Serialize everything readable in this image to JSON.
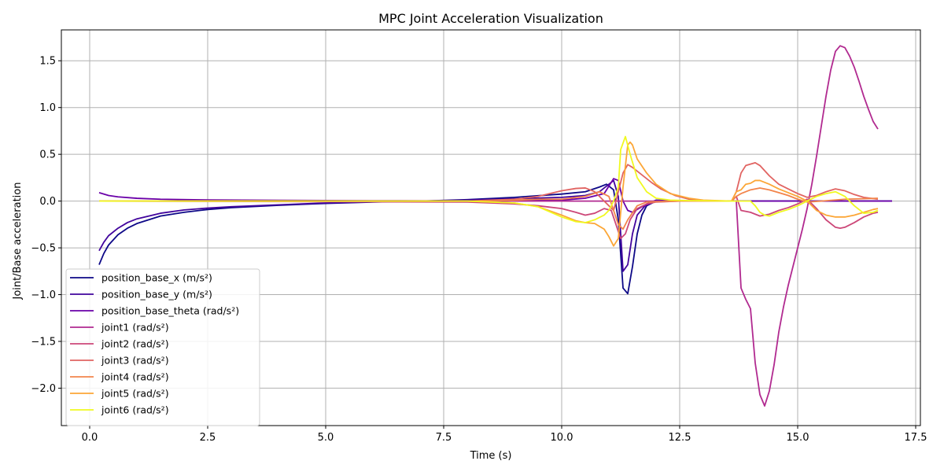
{
  "chart_data": {
    "type": "line",
    "title": "MPC Joint Acceleration Visualization",
    "xlabel": "Time (s)",
    "ylabel": "Joint/Base acceleration",
    "xlim": [
      -0.6,
      17.6
    ],
    "ylim": [
      -2.4,
      1.83
    ],
    "xticks": [
      0.0,
      2.5,
      5.0,
      7.5,
      10.0,
      12.5,
      15.0,
      17.5
    ],
    "xtick_labels": [
      "0.0",
      "2.5",
      "5.0",
      "7.5",
      "10.0",
      "12.5",
      "15.0",
      "17.5"
    ],
    "yticks": [
      1.5,
      1.0,
      0.5,
      0.0,
      -0.5,
      -1.0,
      -1.5,
      -2.0
    ],
    "ytick_labels": [
      "1.5",
      "1.0",
      "0.5",
      "0.0",
      "−0.5",
      "−1.0",
      "−1.5",
      "−2.0"
    ],
    "grid": true,
    "legend_position": "bottom-left",
    "series": [
      {
        "name": "position_base_x (m/s²)",
        "color": "#0d0887",
        "points": [
          [
            0.2,
            -0.68
          ],
          [
            0.3,
            -0.56
          ],
          [
            0.4,
            -0.47
          ],
          [
            0.6,
            -0.36
          ],
          [
            0.8,
            -0.29
          ],
          [
            1.0,
            -0.24
          ],
          [
            1.5,
            -0.16
          ],
          [
            2.0,
            -0.12
          ],
          [
            2.5,
            -0.09
          ],
          [
            3.0,
            -0.07
          ],
          [
            4.0,
            -0.045
          ],
          [
            5.0,
            -0.025
          ],
          [
            6.0,
            -0.01
          ],
          [
            7.0,
            0.0
          ],
          [
            8.0,
            0.015
          ],
          [
            9.0,
            0.04
          ],
          [
            10.0,
            0.075
          ],
          [
            10.5,
            0.1
          ],
          [
            10.8,
            0.15
          ],
          [
            10.95,
            0.18
          ],
          [
            11.1,
            0.12
          ],
          [
            11.2,
            -0.2
          ],
          [
            11.3,
            -0.93
          ],
          [
            11.4,
            -0.99
          ],
          [
            11.5,
            -0.7
          ],
          [
            11.6,
            -0.35
          ],
          [
            11.7,
            -0.15
          ],
          [
            11.8,
            -0.05
          ],
          [
            12.0,
            0.0
          ],
          [
            12.5,
            0.0
          ],
          [
            17.0,
            0.0
          ]
        ]
      },
      {
        "name": "position_base_y (m/s²)",
        "color": "#41049d",
        "points": [
          [
            0.2,
            -0.53
          ],
          [
            0.3,
            -0.44
          ],
          [
            0.4,
            -0.37
          ],
          [
            0.6,
            -0.29
          ],
          [
            0.8,
            -0.23
          ],
          [
            1.0,
            -0.19
          ],
          [
            1.5,
            -0.13
          ],
          [
            2.0,
            -0.095
          ],
          [
            2.5,
            -0.075
          ],
          [
            3.0,
            -0.06
          ],
          [
            4.0,
            -0.04
          ],
          [
            5.0,
            -0.02
          ],
          [
            6.0,
            -0.008
          ],
          [
            7.0,
            0.0
          ],
          [
            8.0,
            0.01
          ],
          [
            9.0,
            0.025
          ],
          [
            10.0,
            0.04
          ],
          [
            10.5,
            0.06
          ],
          [
            10.8,
            0.1
          ],
          [
            11.0,
            0.18
          ],
          [
            11.1,
            0.22
          ],
          [
            11.2,
            0.05
          ],
          [
            11.3,
            -0.75
          ],
          [
            11.4,
            -0.68
          ],
          [
            11.5,
            -0.35
          ],
          [
            11.6,
            -0.15
          ],
          [
            11.8,
            -0.03
          ],
          [
            12.0,
            0.01
          ],
          [
            12.5,
            0.0
          ],
          [
            17.0,
            0.0
          ]
        ]
      },
      {
        "name": "position_base_theta (rad/s²)",
        "color": "#6a00a8",
        "points": [
          [
            0.2,
            0.09
          ],
          [
            0.4,
            0.06
          ],
          [
            0.6,
            0.045
          ],
          [
            1.0,
            0.03
          ],
          [
            1.5,
            0.02
          ],
          [
            2.5,
            0.012
          ],
          [
            4.0,
            0.008
          ],
          [
            6.0,
            0.004
          ],
          [
            8.0,
            0.002
          ],
          [
            10.0,
            0.01
          ],
          [
            10.5,
            0.03
          ],
          [
            10.9,
            0.08
          ],
          [
            11.1,
            0.24
          ],
          [
            11.2,
            0.22
          ],
          [
            11.3,
            0.0
          ],
          [
            11.4,
            -0.1
          ],
          [
            11.5,
            -0.12
          ],
          [
            11.7,
            -0.06
          ],
          [
            12.0,
            0.0
          ],
          [
            12.5,
            0.0
          ],
          [
            17.0,
            0.0
          ]
        ]
      },
      {
        "name": "joint1 (rad/s²)",
        "color": "#b12a90",
        "points": [
          [
            0.2,
            0.0
          ],
          [
            13.7,
            0.0
          ],
          [
            13.8,
            -0.93
          ],
          [
            13.9,
            -1.05
          ],
          [
            14.0,
            -1.15
          ],
          [
            14.1,
            -1.73
          ],
          [
            14.2,
            -2.07
          ],
          [
            14.3,
            -2.19
          ],
          [
            14.4,
            -2.03
          ],
          [
            14.5,
            -1.75
          ],
          [
            14.6,
            -1.4
          ],
          [
            14.7,
            -1.13
          ],
          [
            14.8,
            -0.9
          ],
          [
            14.9,
            -0.7
          ],
          [
            15.0,
            -0.5
          ],
          [
            15.1,
            -0.3
          ],
          [
            15.2,
            -0.08
          ],
          [
            15.3,
            0.18
          ],
          [
            15.4,
            0.48
          ],
          [
            15.5,
            0.8
          ],
          [
            15.6,
            1.12
          ],
          [
            15.7,
            1.4
          ],
          [
            15.8,
            1.6
          ],
          [
            15.9,
            1.66
          ],
          [
            16.0,
            1.64
          ],
          [
            16.1,
            1.55
          ],
          [
            16.2,
            1.43
          ],
          [
            16.3,
            1.28
          ],
          [
            16.4,
            1.12
          ],
          [
            16.5,
            0.98
          ],
          [
            16.6,
            0.85
          ],
          [
            16.7,
            0.77
          ]
        ]
      },
      {
        "name": "joint2 (rad/s²)",
        "color": "#cc4778",
        "points": [
          [
            0.2,
            0.0
          ],
          [
            8.0,
            -0.01
          ],
          [
            9.0,
            -0.03
          ],
          [
            9.5,
            -0.05
          ],
          [
            10.0,
            -0.08
          ],
          [
            10.3,
            -0.12
          ],
          [
            10.5,
            -0.15
          ],
          [
            10.7,
            -0.13
          ],
          [
            10.9,
            -0.08
          ],
          [
            11.05,
            -0.1
          ],
          [
            11.15,
            -0.25
          ],
          [
            11.25,
            -0.4
          ],
          [
            11.35,
            -0.35
          ],
          [
            11.45,
            -0.2
          ],
          [
            11.6,
            -0.08
          ],
          [
            11.8,
            -0.03
          ],
          [
            12.0,
            -0.01
          ],
          [
            12.5,
            0.0
          ],
          [
            13.6,
            0.0
          ],
          [
            13.7,
            0.05
          ],
          [
            13.8,
            -0.1
          ],
          [
            14.0,
            -0.12
          ],
          [
            14.2,
            -0.16
          ],
          [
            14.4,
            -0.14
          ],
          [
            14.6,
            -0.1
          ],
          [
            14.8,
            -0.07
          ],
          [
            15.0,
            -0.03
          ],
          [
            15.2,
            0.02
          ],
          [
            15.4,
            -0.08
          ],
          [
            15.6,
            -0.2
          ],
          [
            15.8,
            -0.28
          ],
          [
            15.9,
            -0.29
          ],
          [
            16.0,
            -0.28
          ],
          [
            16.2,
            -0.23
          ],
          [
            16.4,
            -0.17
          ],
          [
            16.6,
            -0.13
          ],
          [
            16.7,
            -0.12
          ]
        ]
      },
      {
        "name": "joint3 (rad/s²)",
        "color": "#e16462",
        "points": [
          [
            0.2,
            0.0
          ],
          [
            8.0,
            0.0
          ],
          [
            9.0,
            0.02
          ],
          [
            9.5,
            0.05
          ],
          [
            10.0,
            0.11
          ],
          [
            10.3,
            0.135
          ],
          [
            10.5,
            0.14
          ],
          [
            10.7,
            0.1
          ],
          [
            10.9,
            0.0
          ],
          [
            11.0,
            -0.05
          ],
          [
            11.1,
            -0.1
          ],
          [
            11.2,
            0.1
          ],
          [
            11.3,
            0.3
          ],
          [
            11.4,
            0.39
          ],
          [
            11.5,
            0.36
          ],
          [
            11.7,
            0.28
          ],
          [
            11.9,
            0.2
          ],
          [
            12.1,
            0.13
          ],
          [
            12.4,
            0.06
          ],
          [
            12.7,
            0.02
          ],
          [
            13.0,
            0.005
          ],
          [
            13.6,
            0.0
          ],
          [
            13.7,
            0.1
          ],
          [
            13.8,
            0.3
          ],
          [
            13.9,
            0.38
          ],
          [
            14.1,
            0.41
          ],
          [
            14.2,
            0.38
          ],
          [
            14.4,
            0.27
          ],
          [
            14.6,
            0.18
          ],
          [
            14.8,
            0.13
          ],
          [
            15.0,
            0.08
          ],
          [
            15.2,
            0.04
          ],
          [
            15.4,
            0.06
          ],
          [
            15.6,
            0.1
          ],
          [
            15.8,
            0.13
          ],
          [
            16.0,
            0.11
          ],
          [
            16.2,
            0.07
          ],
          [
            16.4,
            0.04
          ],
          [
            16.7,
            0.02
          ]
        ]
      },
      {
        "name": "joint4 (rad/s²)",
        "color": "#f2844b",
        "points": [
          [
            0.2,
            0.0
          ],
          [
            8.0,
            0.0
          ],
          [
            9.0,
            0.01
          ],
          [
            9.5,
            0.02
          ],
          [
            10.0,
            0.02
          ],
          [
            10.5,
            0.05
          ],
          [
            10.8,
            0.1
          ],
          [
            11.0,
            0.05
          ],
          [
            11.1,
            -0.1
          ],
          [
            11.2,
            -0.25
          ],
          [
            11.3,
            -0.3
          ],
          [
            11.4,
            -0.2
          ],
          [
            11.6,
            -0.05
          ],
          [
            11.8,
            -0.01
          ],
          [
            12.5,
            0.0
          ],
          [
            13.6,
            0.0
          ],
          [
            13.7,
            0.05
          ],
          [
            13.8,
            0.08
          ],
          [
            14.0,
            0.12
          ],
          [
            14.2,
            0.14
          ],
          [
            14.4,
            0.12
          ],
          [
            14.6,
            0.09
          ],
          [
            14.8,
            0.06
          ],
          [
            15.0,
            0.02
          ],
          [
            15.2,
            -0.01
          ],
          [
            15.5,
            0.0
          ],
          [
            16.0,
            0.02
          ],
          [
            16.7,
            0.03
          ]
        ]
      },
      {
        "name": "joint5 (rad/s²)",
        "color": "#fca636",
        "points": [
          [
            0.2,
            0.0
          ],
          [
            8.0,
            0.0
          ],
          [
            9.0,
            -0.02
          ],
          [
            9.5,
            -0.06
          ],
          [
            10.0,
            -0.15
          ],
          [
            10.3,
            -0.21
          ],
          [
            10.5,
            -0.23
          ],
          [
            10.7,
            -0.24
          ],
          [
            10.9,
            -0.3
          ],
          [
            11.0,
            -0.38
          ],
          [
            11.1,
            -0.48
          ],
          [
            11.2,
            -0.4
          ],
          [
            11.3,
            0.15
          ],
          [
            11.4,
            0.6
          ],
          [
            11.45,
            0.63
          ],
          [
            11.5,
            0.6
          ],
          [
            11.6,
            0.45
          ],
          [
            11.8,
            0.3
          ],
          [
            12.0,
            0.18
          ],
          [
            12.3,
            0.08
          ],
          [
            12.7,
            0.03
          ],
          [
            13.0,
            0.01
          ],
          [
            13.6,
            0.0
          ],
          [
            13.7,
            0.1
          ],
          [
            13.8,
            0.12
          ],
          [
            13.9,
            0.18
          ],
          [
            14.0,
            0.19
          ],
          [
            14.1,
            0.22
          ],
          [
            14.2,
            0.22
          ],
          [
            14.4,
            0.18
          ],
          [
            14.6,
            0.13
          ],
          [
            14.8,
            0.09
          ],
          [
            15.0,
            0.05
          ],
          [
            15.2,
            0.0
          ],
          [
            15.4,
            -0.1
          ],
          [
            15.6,
            -0.15
          ],
          [
            15.8,
            -0.17
          ],
          [
            16.0,
            -0.17
          ],
          [
            16.2,
            -0.15
          ],
          [
            16.4,
            -0.12
          ],
          [
            16.6,
            -0.09
          ],
          [
            16.7,
            -0.08
          ]
        ]
      },
      {
        "name": "joint6 (rad/s²)",
        "color": "#f0f921",
        "points": [
          [
            0.2,
            0.0
          ],
          [
            8.0,
            0.0
          ],
          [
            9.0,
            -0.02
          ],
          [
            9.5,
            -0.06
          ],
          [
            10.0,
            -0.17
          ],
          [
            10.3,
            -0.22
          ],
          [
            10.5,
            -0.23
          ],
          [
            10.7,
            -0.2
          ],
          [
            10.9,
            -0.15
          ],
          [
            11.0,
            -0.1
          ],
          [
            11.1,
            0.0
          ],
          [
            11.2,
            0.15
          ],
          [
            11.25,
            0.55
          ],
          [
            11.35,
            0.69
          ],
          [
            11.45,
            0.5
          ],
          [
            11.6,
            0.25
          ],
          [
            11.8,
            0.1
          ],
          [
            12.0,
            0.03
          ],
          [
            12.3,
            0.01
          ],
          [
            12.7,
            0.005
          ],
          [
            13.6,
            0.0
          ],
          [
            13.7,
            0.0
          ],
          [
            14.0,
            0.0
          ],
          [
            14.1,
            -0.05
          ],
          [
            14.2,
            -0.12
          ],
          [
            14.3,
            -0.15
          ],
          [
            14.4,
            -0.16
          ],
          [
            14.6,
            -0.12
          ],
          [
            14.8,
            -0.09
          ],
          [
            15.0,
            -0.05
          ],
          [
            15.2,
            0.0
          ],
          [
            15.4,
            0.05
          ],
          [
            15.6,
            0.08
          ],
          [
            15.8,
            0.1
          ],
          [
            16.0,
            0.05
          ],
          [
            16.2,
            -0.05
          ],
          [
            16.4,
            -0.13
          ],
          [
            16.6,
            -0.12
          ],
          [
            16.7,
            -0.1
          ]
        ]
      }
    ]
  }
}
